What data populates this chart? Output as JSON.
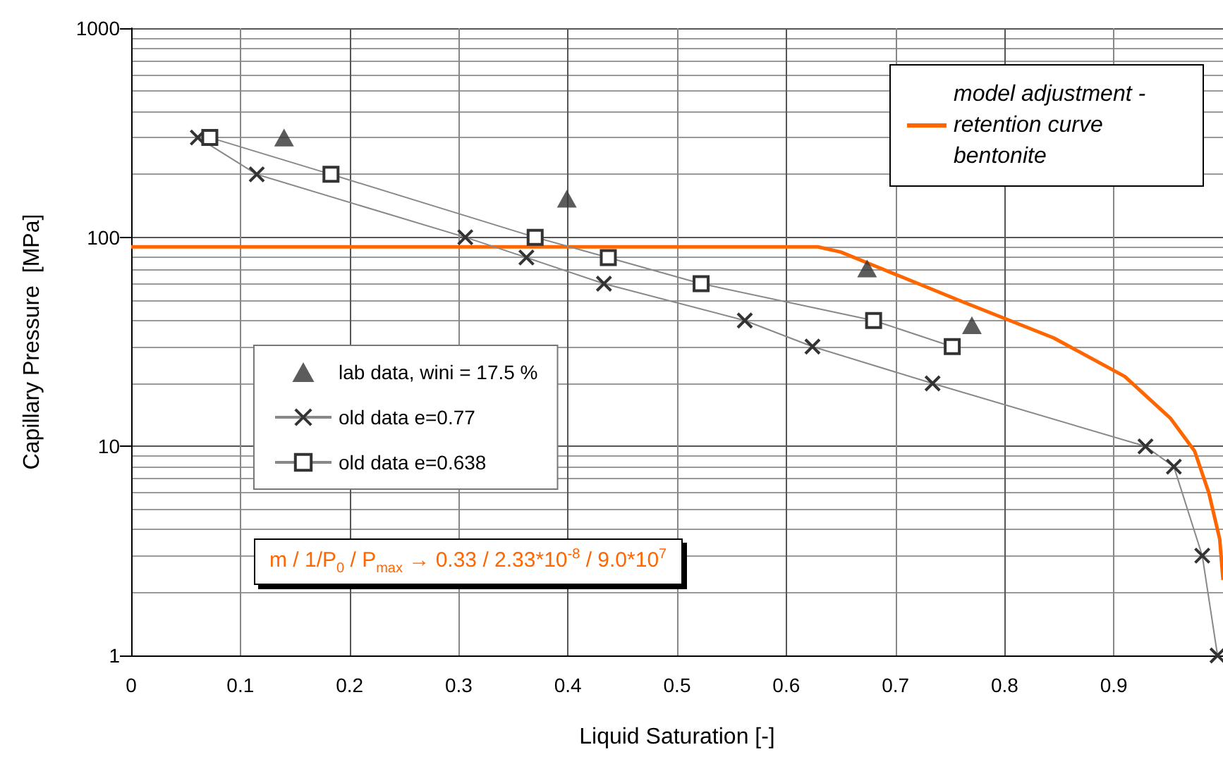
{
  "chart_data": {
    "type": "line",
    "xlabel": "Liquid Saturation [-]",
    "ylabel": "Capillary Pressure  [MPa]",
    "xlim": [
      0,
      1
    ],
    "xticks": [
      0,
      0.1,
      0.2,
      0.3,
      0.4,
      0.5,
      0.6,
      0.7,
      0.8,
      0.9
    ],
    "ylim": [
      1,
      1000
    ],
    "yticks": [
      1,
      10,
      100,
      1000
    ],
    "log": "y",
    "grid": true,
    "legend": "top right",
    "annotations": [
      "m / 1/P$_{0}$ / P$_{max}$ → 0.33 / 2.33*10$^{-8}$ / 9.0*10$^{7}$"
    ],
    "series": [
      {
        "name": "model adjustment - retention curve bentonite",
        "color": "#ff6600",
        "marker": "none",
        "x": [
          0,
          0.629,
          0.65,
          0.681,
          0.758,
          0.845,
          0.91,
          0.952,
          0.974,
          0.987,
          0.997,
          1.0
        ],
        "values": [
          90,
          90,
          85,
          73,
          50,
          33,
          21.6,
          13.6,
          9.5,
          6,
          3.6,
          2.3
        ]
      },
      {
        "name": "lab data, wini = 17.5 %",
        "type": "scatter",
        "color": "#333333",
        "marker": "triangle",
        "x": [
          0.14,
          0.399,
          0.674,
          0.77
        ],
        "values": [
          300,
          153,
          71,
          38
        ]
      },
      {
        "name": "old data e=0.77",
        "color": "#333333",
        "marker": "cross",
        "x": [
          0.061,
          0.115,
          0.306,
          0.362,
          0.433,
          0.562,
          0.624,
          0.734,
          0.929,
          0.955,
          0.981,
          0.995
        ],
        "values": [
          300,
          200,
          100,
          80,
          60,
          40,
          30,
          20,
          10,
          8,
          3,
          1
        ]
      },
      {
        "name": "old data e=0.638",
        "color": "#333333",
        "marker": "square",
        "x": [
          0.072,
          0.183,
          0.37,
          0.437,
          0.522,
          0.68,
          0.752
        ],
        "values": [
          300,
          200,
          100,
          80,
          60,
          40,
          30
        ]
      }
    ]
  }
}
